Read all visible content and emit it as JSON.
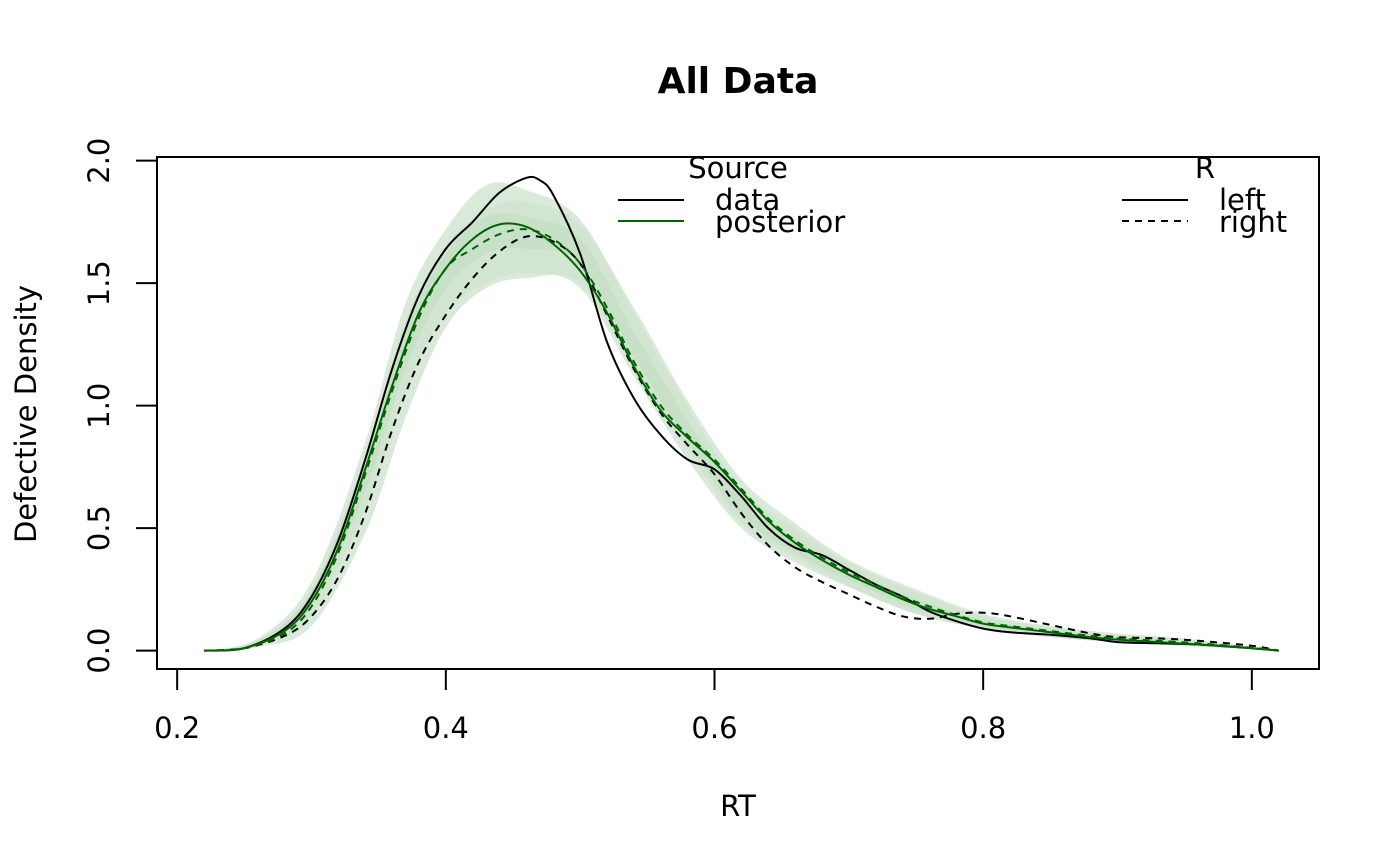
{
  "chart_data": {
    "type": "line",
    "title": "All Data",
    "xlabel": "RT",
    "ylabel": "Defective Density",
    "xlim": [
      0.185,
      1.05
    ],
    "ylim": [
      -0.075,
      2.015
    ],
    "x_ticks": [
      0.2,
      0.4,
      0.6,
      0.8,
      1.0
    ],
    "x_tick_labels": [
      "0.2",
      "0.4",
      "0.6",
      "0.8",
      "1.0"
    ],
    "y_ticks": [
      0.0,
      0.5,
      1.0,
      1.5,
      2.0
    ],
    "y_tick_labels": [
      "0.0",
      "0.5",
      "1.0",
      "1.5",
      "2.0"
    ],
    "grid": false,
    "colors": {
      "data": "#000000",
      "posterior": "#006400",
      "band_outer": "#cde3cd",
      "band_inner": "#a8cfa8"
    },
    "legends": [
      {
        "title": "Source",
        "position": "top-center",
        "entries": [
          {
            "label": "data",
            "color": "#000000",
            "dash": "solid"
          },
          {
            "label": "posterior",
            "color": "#006400",
            "dash": "solid"
          }
        ]
      },
      {
        "title": "R",
        "position": "top-right",
        "entries": [
          {
            "label": "left",
            "color": "#000000",
            "dash": "solid"
          },
          {
            "label": "right",
            "color": "#000000",
            "dash": "dashed"
          }
        ]
      }
    ],
    "bands": [
      {
        "name": "left",
        "x": [
          0.22,
          0.26,
          0.3,
          0.34,
          0.37,
          0.4,
          0.43,
          0.46,
          0.5,
          0.54,
          0.58,
          0.62,
          0.66,
          0.7,
          0.75,
          0.8,
          0.85,
          0.9,
          0.95,
          1.02
        ],
        "lower95": [
          0.0,
          0.02,
          0.14,
          0.58,
          1.05,
          1.38,
          1.5,
          1.54,
          1.48,
          1.12,
          0.78,
          0.5,
          0.36,
          0.26,
          0.15,
          0.09,
          0.055,
          0.035,
          0.02,
          0.0
        ],
        "upper95": [
          0.0,
          0.05,
          0.28,
          0.85,
          1.42,
          1.72,
          1.9,
          1.88,
          1.76,
          1.38,
          1.0,
          0.66,
          0.5,
          0.36,
          0.24,
          0.14,
          0.095,
          0.065,
          0.045,
          0.0
        ],
        "lower50": [
          0.0,
          0.03,
          0.18,
          0.65,
          1.15,
          1.48,
          1.62,
          1.64,
          1.58,
          1.2,
          0.85,
          0.55,
          0.4,
          0.29,
          0.17,
          0.1,
          0.065,
          0.04,
          0.025,
          0.0
        ],
        "upper50": [
          0.0,
          0.04,
          0.24,
          0.78,
          1.3,
          1.62,
          1.77,
          1.77,
          1.68,
          1.3,
          0.94,
          0.62,
          0.46,
          0.33,
          0.21,
          0.125,
          0.085,
          0.055,
          0.035,
          0.0
        ]
      },
      {
        "name": "right",
        "x": [
          0.22,
          0.26,
          0.3,
          0.34,
          0.37,
          0.4,
          0.43,
          0.46,
          0.5,
          0.54,
          0.58,
          0.62,
          0.66,
          0.7,
          0.75,
          0.8,
          0.85,
          0.9,
          0.95,
          1.02
        ],
        "lower95": [
          0.0,
          0.015,
          0.1,
          0.48,
          0.95,
          1.32,
          1.48,
          1.52,
          1.5,
          1.15,
          0.82,
          0.52,
          0.38,
          0.26,
          0.15,
          0.09,
          0.055,
          0.035,
          0.02,
          0.0
        ],
        "upper95": [
          0.0,
          0.04,
          0.25,
          0.8,
          1.35,
          1.65,
          1.8,
          1.83,
          1.74,
          1.4,
          1.02,
          0.7,
          0.52,
          0.37,
          0.25,
          0.15,
          0.1,
          0.07,
          0.05,
          0.0
        ]
      }
    ],
    "series": [
      {
        "name": "data left",
        "color": "#000000",
        "dash": "solid",
        "x": [
          0.22,
          0.25,
          0.28,
          0.3,
          0.32,
          0.34,
          0.36,
          0.38,
          0.4,
          0.42,
          0.44,
          0.46,
          0.47,
          0.48,
          0.5,
          0.52,
          0.54,
          0.56,
          0.58,
          0.6,
          0.62,
          0.64,
          0.66,
          0.68,
          0.7,
          0.72,
          0.74,
          0.76,
          0.78,
          0.8,
          0.82,
          0.85,
          0.88,
          0.9,
          0.93,
          0.96,
          1.0,
          1.02
        ],
        "y": [
          0.0,
          0.01,
          0.09,
          0.22,
          0.45,
          0.78,
          1.15,
          1.45,
          1.64,
          1.75,
          1.87,
          1.93,
          1.92,
          1.86,
          1.62,
          1.26,
          1.03,
          0.88,
          0.78,
          0.74,
          0.63,
          0.5,
          0.42,
          0.39,
          0.33,
          0.27,
          0.22,
          0.16,
          0.12,
          0.09,
          0.075,
          0.065,
          0.05,
          0.035,
          0.03,
          0.025,
          0.01,
          0.0
        ]
      },
      {
        "name": "data right",
        "color": "#000000",
        "dash": "dashed",
        "x": [
          0.22,
          0.25,
          0.28,
          0.3,
          0.32,
          0.34,
          0.36,
          0.38,
          0.4,
          0.42,
          0.44,
          0.46,
          0.48,
          0.5,
          0.52,
          0.54,
          0.56,
          0.58,
          0.6,
          0.62,
          0.64,
          0.66,
          0.68,
          0.7,
          0.72,
          0.74,
          0.76,
          0.78,
          0.8,
          0.82,
          0.85,
          0.88,
          0.9,
          0.93,
          0.96,
          1.0,
          1.02
        ],
        "y": [
          0.0,
          0.01,
          0.06,
          0.14,
          0.3,
          0.56,
          0.9,
          1.18,
          1.37,
          1.52,
          1.63,
          1.69,
          1.67,
          1.58,
          1.37,
          1.15,
          0.97,
          0.84,
          0.72,
          0.56,
          0.43,
          0.34,
          0.28,
          0.23,
          0.18,
          0.14,
          0.13,
          0.15,
          0.155,
          0.14,
          0.105,
          0.07,
          0.055,
          0.05,
          0.04,
          0.02,
          0.0
        ]
      },
      {
        "name": "posterior left",
        "color": "#006400",
        "dash": "solid",
        "x": [
          0.22,
          0.25,
          0.28,
          0.3,
          0.32,
          0.34,
          0.36,
          0.38,
          0.4,
          0.42,
          0.44,
          0.46,
          0.48,
          0.5,
          0.52,
          0.54,
          0.56,
          0.58,
          0.6,
          0.62,
          0.64,
          0.66,
          0.68,
          0.7,
          0.72,
          0.74,
          0.76,
          0.78,
          0.8,
          0.82,
          0.85,
          0.88,
          0.9,
          0.93,
          0.96,
          1.0,
          1.02
        ],
        "y": [
          0.0,
          0.01,
          0.08,
          0.2,
          0.42,
          0.74,
          1.08,
          1.38,
          1.56,
          1.68,
          1.74,
          1.73,
          1.66,
          1.55,
          1.38,
          1.16,
          0.98,
          0.87,
          0.77,
          0.65,
          0.53,
          0.44,
          0.37,
          0.31,
          0.26,
          0.21,
          0.17,
          0.14,
          0.11,
          0.095,
          0.075,
          0.055,
          0.045,
          0.035,
          0.025,
          0.01,
          0.0
        ]
      },
      {
        "name": "posterior right",
        "color": "#006400",
        "dash": "dashed",
        "x": [
          0.22,
          0.25,
          0.28,
          0.3,
          0.32,
          0.34,
          0.36,
          0.38,
          0.4,
          0.42,
          0.44,
          0.46,
          0.48,
          0.5,
          0.52,
          0.54,
          0.56,
          0.58,
          0.6,
          0.62,
          0.64,
          0.66,
          0.68,
          0.7,
          0.72,
          0.74,
          0.76,
          0.78,
          0.8,
          0.82,
          0.85,
          0.88,
          0.9,
          0.93,
          0.96,
          1.0,
          1.02
        ],
        "y": [
          0.0,
          0.01,
          0.07,
          0.18,
          0.4,
          0.72,
          1.06,
          1.36,
          1.56,
          1.64,
          1.7,
          1.72,
          1.68,
          1.58,
          1.4,
          1.18,
          1.0,
          0.88,
          0.78,
          0.66,
          0.54,
          0.45,
          0.38,
          0.32,
          0.27,
          0.22,
          0.18,
          0.145,
          0.115,
          0.1,
          0.08,
          0.06,
          0.05,
          0.04,
          0.03,
          0.012,
          0.0
        ]
      }
    ]
  }
}
